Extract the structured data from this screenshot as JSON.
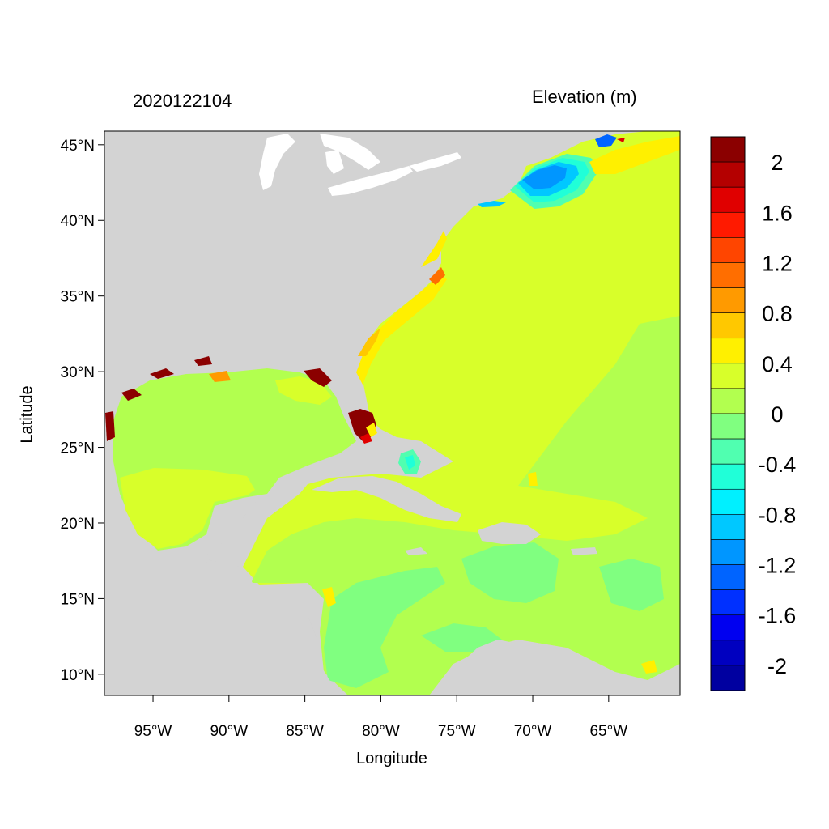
{
  "map": {
    "date": "2020122104",
    "variable": "Elevation (m)",
    "xlabel": "Longitude",
    "ylabel": "Latitude",
    "lon_range": [
      -98.2,
      -60.3
    ],
    "lat_range": [
      8.6,
      45.9
    ],
    "lon_ticks": [
      {
        "value": -95,
        "label": "95°W"
      },
      {
        "value": -90,
        "label": "90°W"
      },
      {
        "value": -85,
        "label": "85°W"
      },
      {
        "value": -80,
        "label": "80°W"
      },
      {
        "value": -75,
        "label": "75°W"
      },
      {
        "value": -70,
        "label": "70°W"
      },
      {
        "value": -65,
        "label": "65°W"
      }
    ],
    "lat_ticks": [
      {
        "value": 45,
        "label": "45°N"
      },
      {
        "value": 40,
        "label": "40°N"
      },
      {
        "value": 35,
        "label": "35°N"
      },
      {
        "value": 30,
        "label": "30°N"
      },
      {
        "value": 25,
        "label": "25°N"
      },
      {
        "value": 20,
        "label": "20°N"
      },
      {
        "value": 15,
        "label": "15°N"
      },
      {
        "value": 10,
        "label": "10°N"
      }
    ],
    "land_color": "#d3d3d3",
    "ocean_base_color": "#b2ff4f"
  },
  "colorbar": {
    "levels": [
      2.2,
      2.0,
      1.8,
      1.6,
      1.4,
      1.2,
      1.0,
      0.8,
      0.6,
      0.4,
      0.2,
      0.0,
      -0.2,
      -0.4,
      -0.6,
      -0.8,
      -1.0,
      -1.2,
      -1.4,
      -1.6,
      -1.8,
      -2.0,
      -2.2
    ],
    "colors": [
      "#8b0000",
      "#b40000",
      "#e00000",
      "#ff1a00",
      "#ff4500",
      "#ff6e00",
      "#ff9a00",
      "#ffc800",
      "#fff000",
      "#d8ff2a",
      "#b2ff4f",
      "#80ff80",
      "#50ffb0",
      "#20ffd8",
      "#00f0ff",
      "#00c8ff",
      "#0096ff",
      "#0064ff",
      "#0030ff",
      "#0000f0",
      "#0000c0",
      "#0000a0"
    ],
    "labels": [
      "2",
      "1.6",
      "1.2",
      "0.8",
      "0.4",
      "0",
      "-0.4",
      "-0.8",
      "-1.2",
      "-1.6",
      "-2"
    ]
  }
}
